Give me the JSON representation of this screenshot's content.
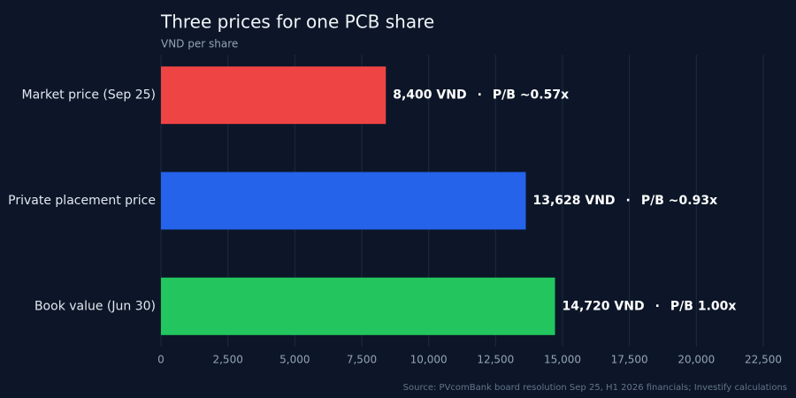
{
  "chart_data": {
    "type": "hbar",
    "title": "Three prices for one PCB share",
    "subtitle": "VND per share",
    "source": "Source: PVcomBank board resolution Sep 25, H1 2026 financials; Investify calculations",
    "categories": [
      "Market price (Sep 25)",
      "Private placement price",
      "Book value (Jun 30)"
    ],
    "values": [
      8400,
      13628,
      14720
    ],
    "value_labels": [
      "8,400 VND",
      "13,628 VND",
      "14,720 VND"
    ],
    "separator": "·",
    "pb_labels": [
      "P/B ~0.57x",
      "P/B ~0.93x",
      "P/B 1.00x"
    ],
    "colors": [
      "#ef4444",
      "#2563eb",
      "#22c55e"
    ],
    "xlim": [
      0,
      22500
    ],
    "xticks": [
      0,
      {
        "value": 2500,
        "label": "2,500"
      },
      {
        "value": 5000,
        "label": "5,000"
      },
      {
        "value": 7500,
        "label": "7,500"
      },
      {
        "value": 10000,
        "label": "10,000"
      },
      {
        "value": 12500,
        "label": "12,500"
      },
      {
        "value": 15000,
        "label": "15,000"
      },
      {
        "value": 17500,
        "label": "17,500"
      },
      {
        "value": 20000,
        "label": "20,000"
      },
      {
        "value": 22500,
        "label": "22,500"
      }
    ],
    "grid": true
  }
}
